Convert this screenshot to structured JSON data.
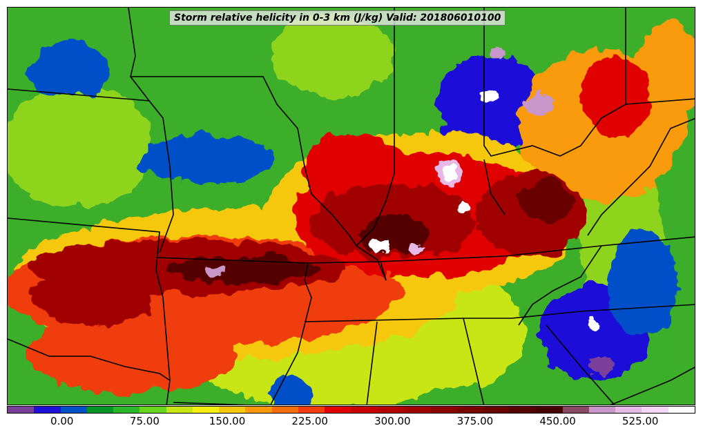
{
  "title": "Storm relative helicity in 0-3 km (J/kg) Valid: 201806010100",
  "colorbar": {
    "colors": [
      "#7b3f9a",
      "#1f10d8",
      "#0050c8",
      "#00962a",
      "#2ab82a",
      "#66d71e",
      "#c8e614",
      "#f5f010",
      "#f5c810",
      "#fa9a0a",
      "#f56e0a",
      "#f03c0a",
      "#e10000",
      "#c80000",
      "#b40000",
      "#a00000",
      "#8c0000",
      "#7a0000",
      "#680000",
      "#550000",
      "#460000",
      "#8a4a64",
      "#c896c8",
      "#e6b9e6",
      "#f5d7f5",
      "#ffffff"
    ],
    "ticks": [
      {
        "label": "0.00",
        "frac": 0.08
      },
      {
        "label": "75.00",
        "frac": 0.2
      },
      {
        "label": "150.00",
        "frac": 0.32
      },
      {
        "label": "225.00",
        "frac": 0.44
      },
      {
        "label": "300.00",
        "frac": 0.56
      },
      {
        "label": "375.00",
        "frac": 0.68
      },
      {
        "label": "450.00",
        "frac": 0.8
      },
      {
        "label": "525.00",
        "frac": 0.92
      }
    ]
  }
}
